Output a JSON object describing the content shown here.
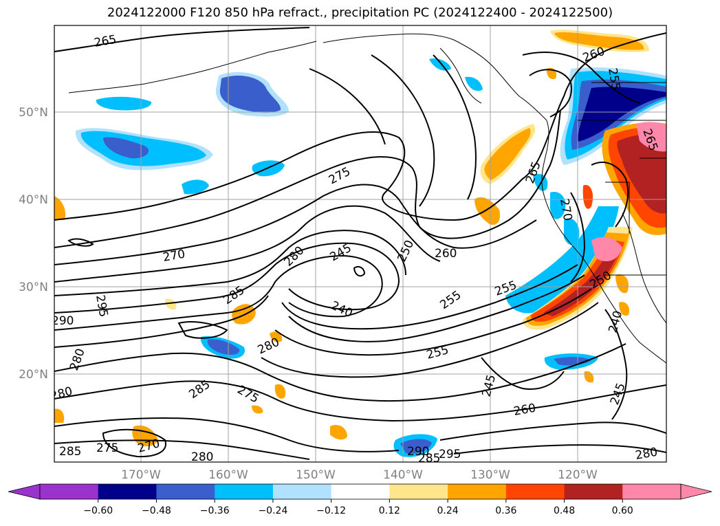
{
  "title": "2024122000 F120 850 hPa refract., precipitation PC (2024122400 - 2024122500)",
  "lat_labels": [
    "50°N",
    "40°N",
    "30°N",
    "20°N"
  ],
  "lon_labels": [
    "170°W",
    "160°W",
    "150°W",
    "140°W",
    "130°W",
    "120°W"
  ],
  "contour_labels": [
    "265",
    "260",
    "255",
    "265",
    "275",
    "265",
    "270",
    "280",
    "245",
    "250",
    "260",
    "295",
    "290",
    "285",
    "240",
    "255",
    "255",
    "270",
    "250",
    "280",
    "280",
    "255",
    "285",
    "275",
    "245",
    "260",
    "245",
    "240",
    "280",
    "275",
    "270",
    "285",
    "280",
    "290",
    "295",
    "285",
    "280"
  ],
  "colorbar": {
    "ticks": [
      "−0.60",
      "−0.48",
      "−0.36",
      "−0.24",
      "−0.12",
      "0.12",
      "0.24",
      "0.36",
      "0.48",
      "0.60"
    ],
    "colors": {
      "under": "#9933cc",
      "bins": [
        "#9933cc",
        "#00008b",
        "#3a5fcd",
        "#00bfff",
        "#b0e2ff",
        "#ffffff",
        "#ffe68c",
        "#ffa500",
        "#ff4500",
        "#b22222",
        "#ff88aa"
      ],
      "over": "#ff88aa"
    }
  },
  "map_colors": {
    "coast": "#000000",
    "grid": "#a0a0a0",
    "contour": "#000000"
  }
}
